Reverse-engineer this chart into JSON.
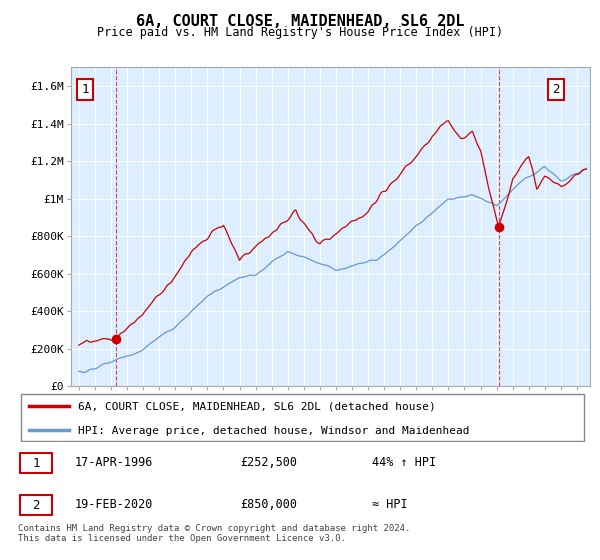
{
  "title": "6A, COURT CLOSE, MAIDENHEAD, SL6 2DL",
  "subtitle": "Price paid vs. HM Land Registry's House Price Index (HPI)",
  "legend_line1": "6A, COURT CLOSE, MAIDENHEAD, SL6 2DL (detached house)",
  "legend_line2": "HPI: Average price, detached house, Windsor and Maidenhead",
  "annotation1_label": "1",
  "annotation1_date": "17-APR-1996",
  "annotation1_price": "£252,500",
  "annotation1_hpi": "44% ↑ HPI",
  "annotation2_label": "2",
  "annotation2_date": "19-FEB-2020",
  "annotation2_price": "£850,000",
  "annotation2_hpi": "≈ HPI",
  "footnote": "Contains HM Land Registry data © Crown copyright and database right 2024.\nThis data is licensed under the Open Government Licence v3.0.",
  "sale1_x": 1996.29,
  "sale1_y": 252500,
  "sale2_x": 2020.12,
  "sale2_y": 850000,
  "red_color": "#cc0000",
  "blue_color": "#6699cc",
  "bg_color": "#ddeeff",
  "ylim_max": 1700000,
  "yticks": [
    0,
    200000,
    400000,
    600000,
    800000,
    1000000,
    1200000,
    1400000,
    1600000
  ],
  "ytick_labels": [
    "£0",
    "£200K",
    "£400K",
    "£600K",
    "£800K",
    "£1M",
    "£1.2M",
    "£1.4M",
    "£1.6M"
  ],
  "xmin": 1993.5,
  "xmax": 2025.8,
  "xticks": [
    1994,
    1995,
    1996,
    1997,
    1998,
    1999,
    2000,
    2001,
    2002,
    2003,
    2004,
    2005,
    2006,
    2007,
    2008,
    2009,
    2010,
    2011,
    2012,
    2013,
    2014,
    2015,
    2016,
    2017,
    2018,
    2019,
    2020,
    2021,
    2022,
    2023,
    2024,
    2025
  ],
  "vline1_x": 1996.29,
  "vline2_x": 2020.12
}
